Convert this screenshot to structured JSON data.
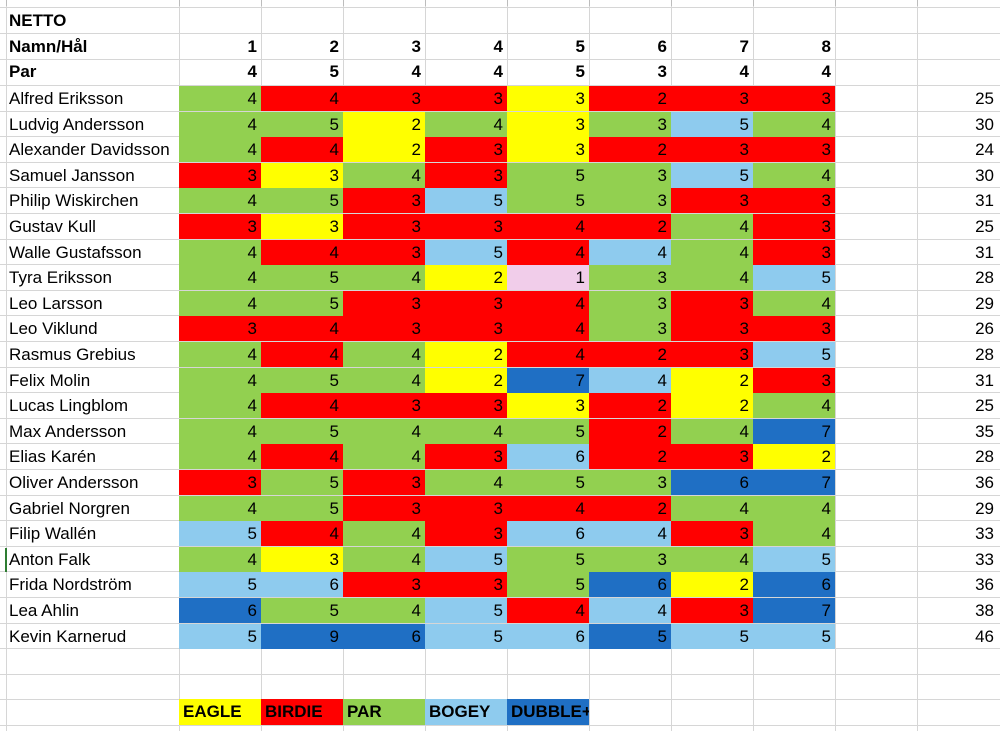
{
  "header": {
    "title": "NETTO",
    "holes_label": "Namn/Hål",
    "par_label": "Par",
    "holes": [
      "1",
      "2",
      "3",
      "4",
      "5",
      "6",
      "7",
      "8"
    ],
    "par": [
      "4",
      "5",
      "4",
      "4",
      "5",
      "3",
      "4",
      "4"
    ]
  },
  "colors": {
    "EAGLE": "#ffff00",
    "BIRDIE": "#ff0000",
    "PAR": "#92d050",
    "BOGEY": "#8ecbee",
    "DUBBLE+": "#1f6fc4",
    "ALBATROSS": "#f1cdea"
  },
  "players": [
    {
      "name": "Alfred Eriksson",
      "scores": [
        4,
        4,
        3,
        3,
        3,
        2,
        3,
        3
      ],
      "total": 25
    },
    {
      "name": "Ludvig Andersson",
      "scores": [
        4,
        5,
        2,
        4,
        3,
        3,
        5,
        4
      ],
      "total": 30
    },
    {
      "name": "Alexander Davidsson",
      "scores": [
        4,
        4,
        2,
        3,
        3,
        2,
        3,
        3
      ],
      "total": 24
    },
    {
      "name": "Samuel Jansson",
      "scores": [
        3,
        3,
        4,
        3,
        5,
        3,
        5,
        4
      ],
      "total": 30
    },
    {
      "name": "Philip Wiskirchen",
      "scores": [
        4,
        5,
        3,
        5,
        5,
        3,
        3,
        3
      ],
      "total": 31
    },
    {
      "name": "Gustav Kull",
      "scores": [
        3,
        3,
        3,
        3,
        4,
        2,
        4,
        3
      ],
      "total": 25
    },
    {
      "name": "Walle Gustafsson",
      "scores": [
        4,
        4,
        3,
        5,
        4,
        4,
        4,
        3
      ],
      "total": 31
    },
    {
      "name": "Tyra Eriksson",
      "scores": [
        4,
        5,
        4,
        2,
        1,
        3,
        4,
        5
      ],
      "total": 28
    },
    {
      "name": "Leo Larsson",
      "scores": [
        4,
        5,
        3,
        3,
        4,
        3,
        3,
        4
      ],
      "total": 29
    },
    {
      "name": "Leo Viklund",
      "scores": [
        3,
        4,
        3,
        3,
        4,
        3,
        3,
        3
      ],
      "total": 26
    },
    {
      "name": "Rasmus Grebius",
      "scores": [
        4,
        4,
        4,
        2,
        4,
        2,
        3,
        5
      ],
      "total": 28
    },
    {
      "name": "Felix Molin",
      "scores": [
        4,
        5,
        4,
        2,
        7,
        4,
        2,
        3
      ],
      "total": 31
    },
    {
      "name": "Lucas Lingblom",
      "scores": [
        4,
        4,
        3,
        3,
        3,
        2,
        2,
        4
      ],
      "total": 25
    },
    {
      "name": "Max Andersson",
      "scores": [
        4,
        5,
        4,
        4,
        5,
        2,
        4,
        7
      ],
      "total": 35
    },
    {
      "name": "Elias Karén",
      "scores": [
        4,
        4,
        4,
        3,
        6,
        2,
        3,
        2
      ],
      "total": 28
    },
    {
      "name": "Oliver Andersson",
      "scores": [
        3,
        5,
        3,
        4,
        5,
        3,
        6,
        7
      ],
      "total": 36
    },
    {
      "name": "Gabriel Norgren",
      "scores": [
        4,
        5,
        3,
        3,
        4,
        2,
        4,
        4
      ],
      "total": 29
    },
    {
      "name": "Filip Wallén",
      "scores": [
        5,
        4,
        4,
        3,
        6,
        4,
        3,
        4
      ],
      "total": 33
    },
    {
      "name": "Anton Falk",
      "scores": [
        4,
        3,
        4,
        5,
        5,
        3,
        4,
        5
      ],
      "total": 33
    },
    {
      "name": "Frida Nordström",
      "scores": [
        5,
        6,
        3,
        3,
        5,
        6,
        2,
        6
      ],
      "total": 36
    },
    {
      "name": "Lea Ahlin",
      "scores": [
        6,
        5,
        4,
        5,
        4,
        4,
        3,
        7
      ],
      "total": 38
    },
    {
      "name": "Kevin Karnerud",
      "scores": [
        5,
        9,
        6,
        5,
        6,
        5,
        5,
        5
      ],
      "total": 46
    }
  ],
  "legend": [
    {
      "label": "EAGLE",
      "color": "#ffff00"
    },
    {
      "label": "BIRDIE",
      "color": "#ff0000"
    },
    {
      "label": "PAR",
      "color": "#92d050"
    },
    {
      "label": "BOGEY",
      "color": "#8ecbee"
    },
    {
      "label": "DUBBLE+",
      "color": "#1f6fc4"
    }
  ]
}
